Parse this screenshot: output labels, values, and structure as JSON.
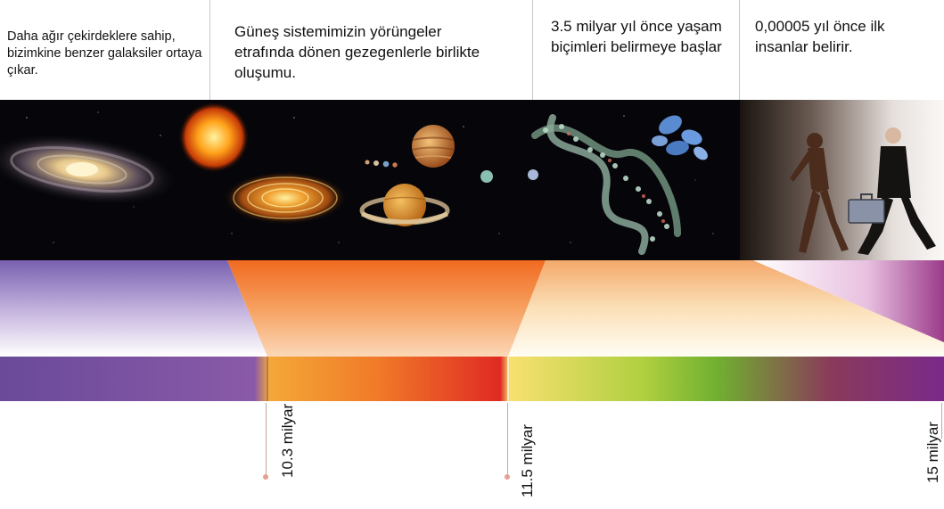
{
  "captions": {
    "galaxies": "Daha ağır çekirdeklere sahip, bizimkine benzer galaksiler ortaya çıkar.",
    "solar_system": "Güneş sistemimizin yörüngeler etrafında dönen gezegenlerle birlikte oluşumu.",
    "life": "3.5 milyar yıl önce yaşam biçimleri belirmeye başlar",
    "humans": "0,00005 yıl önce ilk insanlar belirir."
  },
  "markers": {
    "m1": "10.3 milyar",
    "m2": "11.5 milyar",
    "m3": "15 milyar"
  },
  "colors": {
    "purple": "#8a5aa8",
    "orange": "#f08a2a",
    "red": "#e23a2a",
    "green": "#8cc43a"
  }
}
